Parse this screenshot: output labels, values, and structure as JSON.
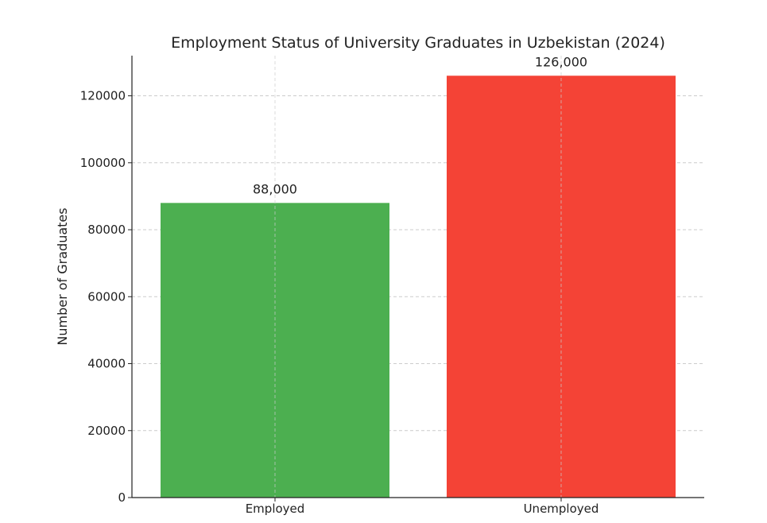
{
  "chart_data": {
    "type": "bar",
    "title": "Employment Status of University Graduates in Uzbekistan (2024)",
    "xlabel": "",
    "ylabel": "Number of Graduates",
    "categories": [
      "Employed",
      "Unemployed"
    ],
    "values": [
      88000,
      126000
    ],
    "data_labels": [
      "88,000",
      "126,000"
    ],
    "colors": [
      "#4caf50",
      "#f44336"
    ],
    "ylim": [
      0,
      132000
    ],
    "yticks": [
      0,
      20000,
      40000,
      60000,
      80000,
      100000,
      120000
    ],
    "ytick_labels": [
      "0",
      "20000",
      "40000",
      "60000",
      "80000",
      "100000",
      "120000"
    ],
    "grid": true,
    "grid_style": "dashed"
  }
}
